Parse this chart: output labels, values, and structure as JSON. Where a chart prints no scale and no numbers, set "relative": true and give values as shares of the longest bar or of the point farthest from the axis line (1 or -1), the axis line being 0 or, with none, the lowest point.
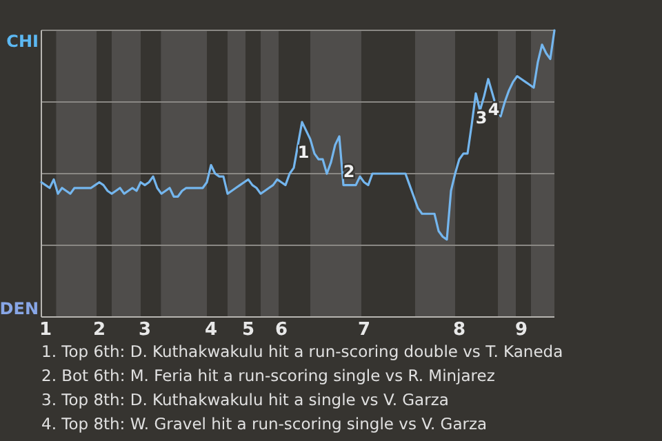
{
  "chart_data": {
    "type": "line",
    "relative": true,
    "grid": true,
    "marker": "none",
    "line_style": "solid",
    "categories": [
      null,
      "1",
      null,
      null,
      null,
      null,
      null,
      null,
      null,
      null,
      null,
      null,
      null,
      null,
      "2",
      null,
      null,
      null,
      null,
      null,
      null,
      null,
      null,
      null,
      null,
      "3",
      null,
      null,
      null,
      null,
      null,
      null,
      null,
      null,
      null,
      null,
      null,
      null,
      null,
      null,
      null,
      "4",
      null,
      null,
      null,
      null,
      null,
      null,
      null,
      null,
      "5",
      null,
      null,
      null,
      null,
      null,
      null,
      null,
      "6",
      null,
      null,
      null,
      null,
      null,
      null,
      null,
      null,
      null,
      null,
      null,
      null,
      null,
      null,
      null,
      null,
      null,
      null,
      null,
      "7",
      null,
      null,
      null,
      null,
      null,
      null,
      null,
      null,
      null,
      null,
      null,
      null,
      null,
      null,
      null,
      null,
      null,
      null,
      null,
      null,
      null,
      null,
      "8",
      null,
      null,
      null,
      null,
      null,
      null,
      null,
      null,
      null,
      null,
      null,
      null,
      null,
      null,
      "9",
      null,
      null,
      null,
      null,
      null,
      null,
      null,
      null
    ],
    "series": [
      {
        "color": "#74b6ee",
        "values": [
          0.47,
          0.46,
          0.45,
          0.48,
          0.43,
          0.45,
          0.44,
          0.43,
          0.45,
          0.45,
          0.45,
          0.45,
          0.45,
          0.46,
          0.47,
          0.46,
          0.44,
          0.43,
          0.44,
          0.45,
          0.43,
          0.44,
          0.45,
          0.44,
          0.47,
          0.46,
          0.47,
          0.49,
          0.45,
          0.43,
          0.44,
          0.45,
          0.42,
          0.42,
          0.44,
          0.45,
          0.45,
          0.45,
          0.45,
          0.45,
          0.47,
          0.53,
          0.5,
          0.49,
          0.49,
          0.43,
          0.44,
          0.45,
          0.46,
          0.47,
          0.48,
          0.46,
          0.45,
          0.43,
          0.44,
          0.45,
          0.46,
          0.48,
          0.47,
          0.46,
          0.5,
          0.52,
          0.6,
          0.68,
          0.65,
          0.62,
          0.57,
          0.55,
          0.55,
          0.5,
          0.54,
          0.6,
          0.63,
          0.46,
          0.46,
          0.46,
          0.46,
          0.49,
          0.47,
          0.46,
          0.5,
          0.5,
          0.5,
          0.5,
          0.5,
          0.5,
          0.5,
          0.5,
          0.5,
          0.46,
          0.42,
          0.38,
          0.36,
          0.36,
          0.36,
          0.36,
          0.3,
          0.28,
          0.27,
          0.44,
          0.5,
          0.55,
          0.57,
          0.57,
          0.67,
          0.78,
          0.72,
          0.77,
          0.83,
          0.78,
          0.73,
          0.7,
          0.75,
          0.79,
          0.82,
          0.84,
          0.83,
          0.82,
          0.81,
          0.8,
          0.89,
          0.95,
          0.92,
          0.9,
          1
        ]
      }
    ],
    "annotations": [
      "CHI",
      "DEN",
      "1",
      "2",
      "3",
      "4",
      "1. Top 6th: D. Kuthakwakulu hit a run-scoring double vs T. Kaneda",
      "2. Bot 6th: M. Feria hit a run-scoring single vs R. Minjarez",
      "3. Top 8th: D. Kuthakwakulu hit a single vs V. Garza",
      "4. Top 8th: W. Gravel hit a run-scoring single vs V. Garza"
    ]
  }
}
